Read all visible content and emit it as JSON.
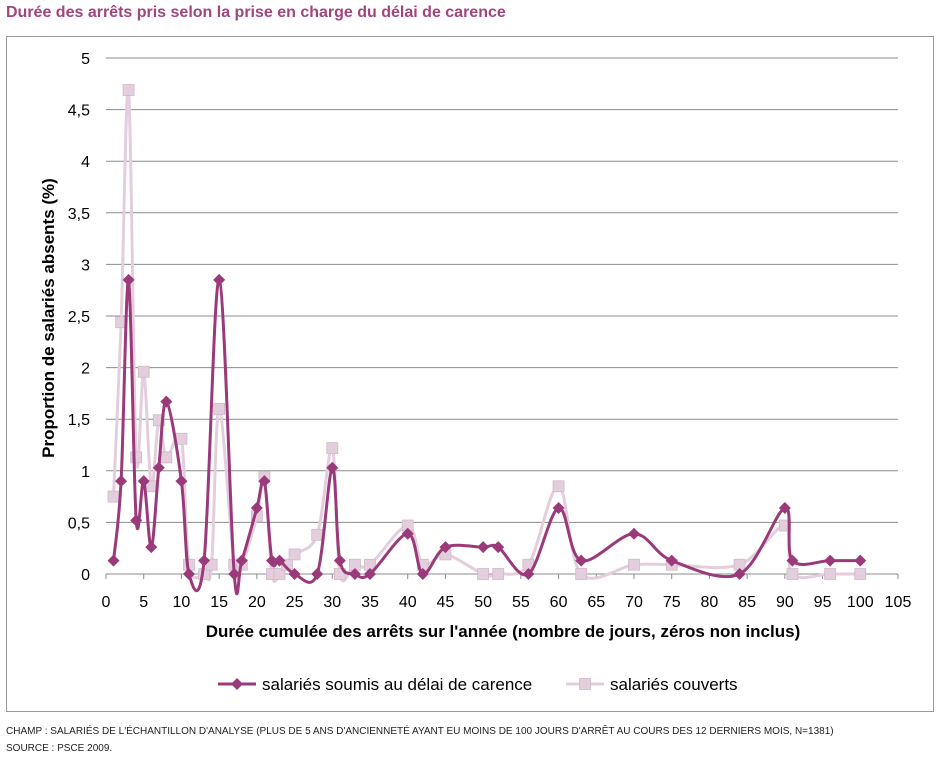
{
  "title": "Durée des arrêts pris selon la prise en charge du délai de carence",
  "footnotes": {
    "champ": "CHAMP : SALARIÉS DE L'ÉCHANTILLON D'ANALYSE (PLUS DE 5 ANS D'ANCIENNETÉ AYANT EU MOINS DE 100 JOURS D'ARRÊT AU COURS DES 12 DERNIERS MOIS, N=1381)",
    "source": "SOURCE : PSCE 2009."
  },
  "chart_data": {
    "type": "line",
    "title": "Durée des arrêts pris selon la prise en charge du délai de carence",
    "xlabel": "Durée cumulée des arrêts sur l'année (nombre de jours, zéros non inclus)",
    "ylabel": "Proportion de salariés absents (%)",
    "xlim": [
      0,
      105
    ],
    "ylim": [
      0,
      5
    ],
    "x_ticks": [
      "0",
      "5",
      "10",
      "15",
      "20",
      "25",
      "30",
      "35",
      "40",
      "45",
      "50",
      "55",
      "60",
      "65",
      "70",
      "75",
      "80",
      "85",
      "90",
      "95",
      "100",
      "105"
    ],
    "y_ticks": [
      "0",
      "0,5",
      "1",
      "1,5",
      "2",
      "2,5",
      "3",
      "3,5",
      "4",
      "4,5",
      "5"
    ],
    "grid": true,
    "legend_position": "bottom",
    "smooth": true,
    "series": [
      {
        "name": "salariés soumis au délai de carence",
        "color": "#9b3a7a",
        "marker": "diamond",
        "points": [
          [
            1,
            0.13
          ],
          [
            2,
            0.9
          ],
          [
            3,
            2.85
          ],
          [
            4,
            0.52
          ],
          [
            5,
            0.9
          ],
          [
            6,
            0.26
          ],
          [
            7,
            1.03
          ],
          [
            8,
            1.67
          ],
          [
            10,
            0.9
          ],
          [
            11,
            0.0
          ],
          [
            13,
            0.13
          ],
          [
            15,
            2.85
          ],
          [
            17,
            0.0
          ],
          [
            18,
            0.13
          ],
          [
            20,
            0.64
          ],
          [
            21,
            0.9
          ],
          [
            22,
            0.13
          ],
          [
            23,
            0.13
          ],
          [
            25,
            0.0
          ],
          [
            28,
            0.0
          ],
          [
            30,
            1.03
          ],
          [
            31,
            0.13
          ],
          [
            33,
            0.0
          ],
          [
            35,
            0.0
          ],
          [
            40,
            0.39
          ],
          [
            42,
            0.0
          ],
          [
            45,
            0.26
          ],
          [
            50,
            0.26
          ],
          [
            52,
            0.26
          ],
          [
            56,
            0.0
          ],
          [
            60,
            0.64
          ],
          [
            63,
            0.13
          ],
          [
            70,
            0.39
          ],
          [
            75,
            0.13
          ],
          [
            84,
            0.0
          ],
          [
            90,
            0.64
          ],
          [
            91,
            0.13
          ],
          [
            96,
            0.13
          ],
          [
            100,
            0.13
          ]
        ]
      },
      {
        "name": "salariés couverts",
        "color": "#e3cedd",
        "marker": "square",
        "points": [
          [
            1,
            0.75
          ],
          [
            2,
            2.44
          ],
          [
            3,
            4.69
          ],
          [
            4,
            1.13
          ],
          [
            5,
            1.96
          ],
          [
            6,
            0.85
          ],
          [
            7,
            1.49
          ],
          [
            8,
            1.13
          ],
          [
            10,
            1.31
          ],
          [
            11,
            0.09
          ],
          [
            13,
            0.0
          ],
          [
            14,
            0.09
          ],
          [
            15,
            1.6
          ],
          [
            17,
            0.09
          ],
          [
            18,
            0.09
          ],
          [
            20,
            0.56
          ],
          [
            21,
            0.94
          ],
          [
            22,
            0.0
          ],
          [
            23,
            0.0
          ],
          [
            24,
            0.09
          ],
          [
            25,
            0.19
          ],
          [
            28,
            0.38
          ],
          [
            30,
            1.22
          ],
          [
            31,
            0.0
          ],
          [
            33,
            0.09
          ],
          [
            35,
            0.09
          ],
          [
            40,
            0.47
          ],
          [
            42,
            0.09
          ],
          [
            45,
            0.19
          ],
          [
            50,
            0.0
          ],
          [
            52,
            0.0
          ],
          [
            56,
            0.09
          ],
          [
            60,
            0.85
          ],
          [
            63,
            0.0
          ],
          [
            70,
            0.09
          ],
          [
            75,
            0.09
          ],
          [
            84,
            0.09
          ],
          [
            90,
            0.47
          ],
          [
            91,
            0.0
          ],
          [
            96,
            0.0
          ],
          [
            100,
            0.0
          ]
        ]
      }
    ]
  }
}
